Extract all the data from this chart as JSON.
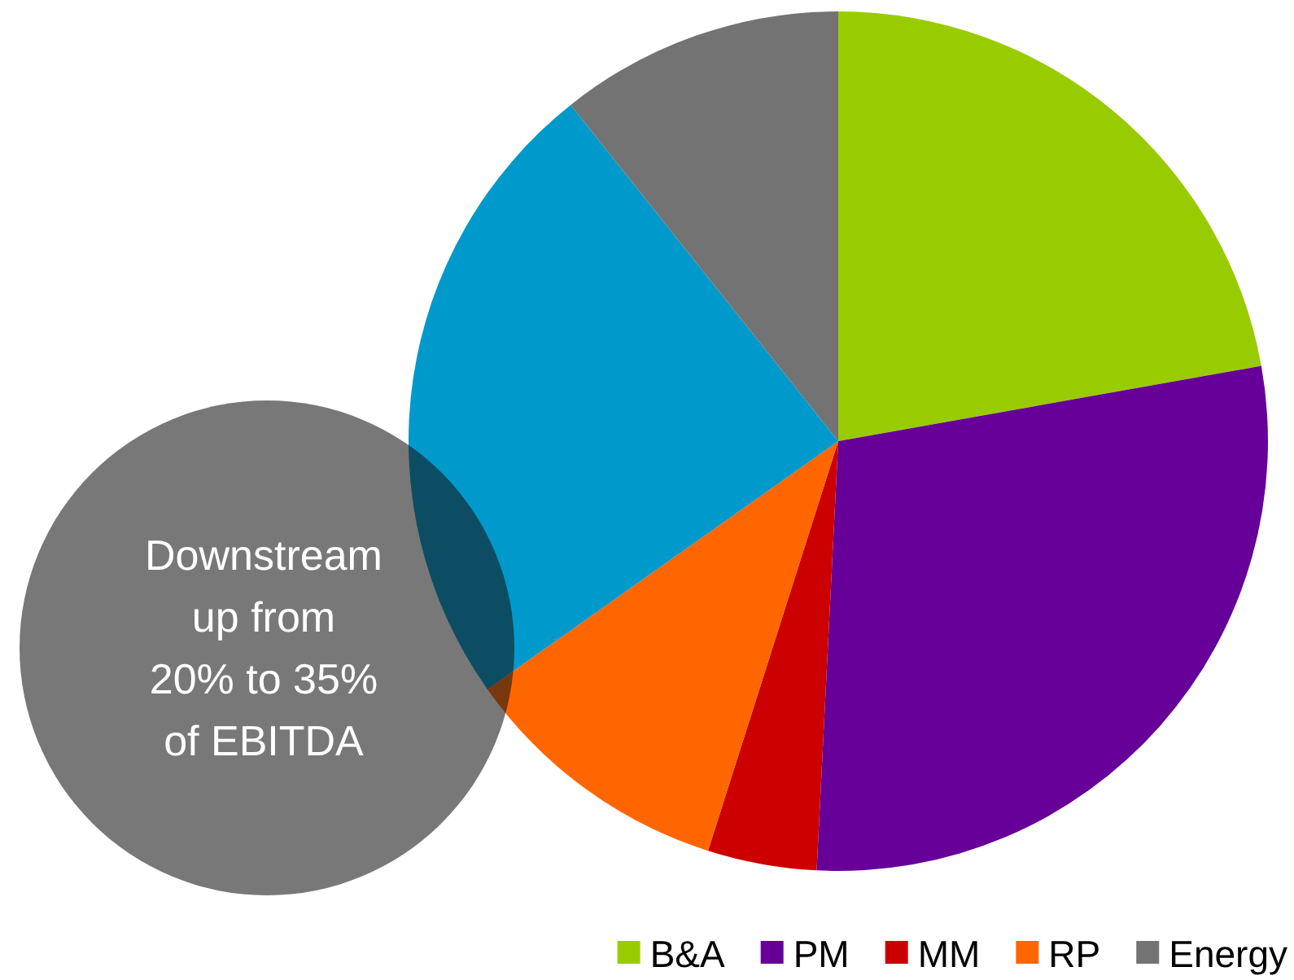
{
  "chart_data": {
    "type": "pie",
    "categories": [
      "B&A",
      "PM",
      "MM",
      "RP",
      null,
      "Energy"
    ],
    "values": [
      22.2,
      28.6,
      4.1,
      10.3,
      24.1,
      10.7
    ],
    "colors": [
      "#99cc00",
      "#660099",
      "#cc0000",
      "#ff6600",
      "#0099cc",
      "#737373"
    ],
    "legend": "bottom right",
    "annotations": [
      "Downstream\nup from\n20% to 35%\nof EBITDA"
    ]
  }
}
